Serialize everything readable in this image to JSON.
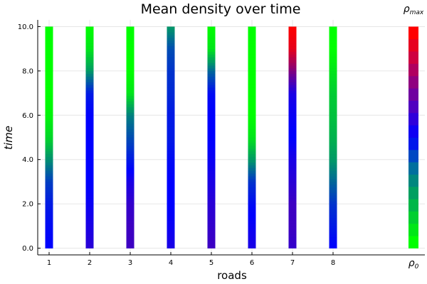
{
  "chart_data": {
    "type": "heatmap",
    "title": "Mean density over time",
    "xlabel": "roads",
    "ylabel": "time",
    "x_ticks": [
      "1",
      "2",
      "3",
      "4",
      "5",
      "6",
      "7",
      "8"
    ],
    "y_ticks": [
      "0.0",
      "2.0",
      "4.0",
      "6.0",
      "8.0",
      "10.0"
    ],
    "ylim": [
      0,
      10
    ],
    "grid": true,
    "colorbar": {
      "top_label": "ρ",
      "top_sub": "max",
      "bottom_label": "ρ",
      "bottom_sub": "0",
      "colors": [
        "#00ff00",
        "#00cc33",
        "#009966",
        "#0066aa",
        "#0000ff",
        "#4400cc",
        "#880088",
        "#cc0044",
        "#ff0000"
      ]
    },
    "density_scale": "0 = ρ0 (green), 0.5 = blue, 1 = ρmax (red)",
    "series": [
      {
        "road": 1,
        "time": [
          0,
          1,
          2,
          3,
          4,
          5,
          6,
          7,
          8,
          9,
          10
        ],
        "density": [
          0.5,
          0.48,
          0.45,
          0.38,
          0.22,
          0.08,
          0.02,
          0.0,
          0.0,
          0.0,
          0.0
        ]
      },
      {
        "road": 2,
        "time": [
          0,
          1,
          2,
          3,
          4,
          5,
          6,
          7,
          8,
          9,
          10
        ],
        "density": [
          0.58,
          0.55,
          0.52,
          0.5,
          0.5,
          0.5,
          0.5,
          0.45,
          0.2,
          0.05,
          0.0
        ]
      },
      {
        "road": 3,
        "time": [
          0,
          1,
          2,
          3,
          4,
          5,
          6,
          7,
          8,
          9,
          10
        ],
        "density": [
          0.62,
          0.62,
          0.6,
          0.55,
          0.45,
          0.35,
          0.25,
          0.05,
          0.0,
          0.0,
          0.0
        ]
      },
      {
        "road": 4,
        "time": [
          0,
          1,
          2,
          3,
          4,
          5,
          6,
          7,
          8,
          9,
          10
        ],
        "density": [
          0.55,
          0.52,
          0.5,
          0.5,
          0.48,
          0.45,
          0.45,
          0.42,
          0.4,
          0.35,
          0.2
        ]
      },
      {
        "road": 5,
        "time": [
          0,
          1,
          2,
          3,
          4,
          5,
          6,
          7,
          8,
          9,
          10
        ],
        "density": [
          0.62,
          0.6,
          0.58,
          0.55,
          0.52,
          0.5,
          0.5,
          0.48,
          0.3,
          0.05,
          0.0
        ]
      },
      {
        "road": 6,
        "time": [
          0,
          1,
          2,
          3,
          4,
          5,
          6,
          7,
          8,
          9,
          10
        ],
        "density": [
          0.55,
          0.52,
          0.48,
          0.4,
          0.2,
          0.05,
          0.0,
          0.0,
          0.0,
          0.0,
          0.0
        ]
      },
      {
        "road": 7,
        "time": [
          0,
          1,
          2,
          3,
          4,
          5,
          6,
          7,
          8,
          9,
          10
        ],
        "density": [
          0.6,
          0.62,
          0.62,
          0.58,
          0.55,
          0.5,
          0.52,
          0.55,
          0.75,
          0.95,
          1.0
        ]
      },
      {
        "road": 8,
        "time": [
          0,
          1,
          2,
          3,
          4,
          5,
          6,
          7,
          8,
          9,
          10
        ],
        "density": [
          0.5,
          0.45,
          0.4,
          0.3,
          0.2,
          0.15,
          0.12,
          0.1,
          0.05,
          0.0,
          0.0
        ]
      }
    ]
  }
}
